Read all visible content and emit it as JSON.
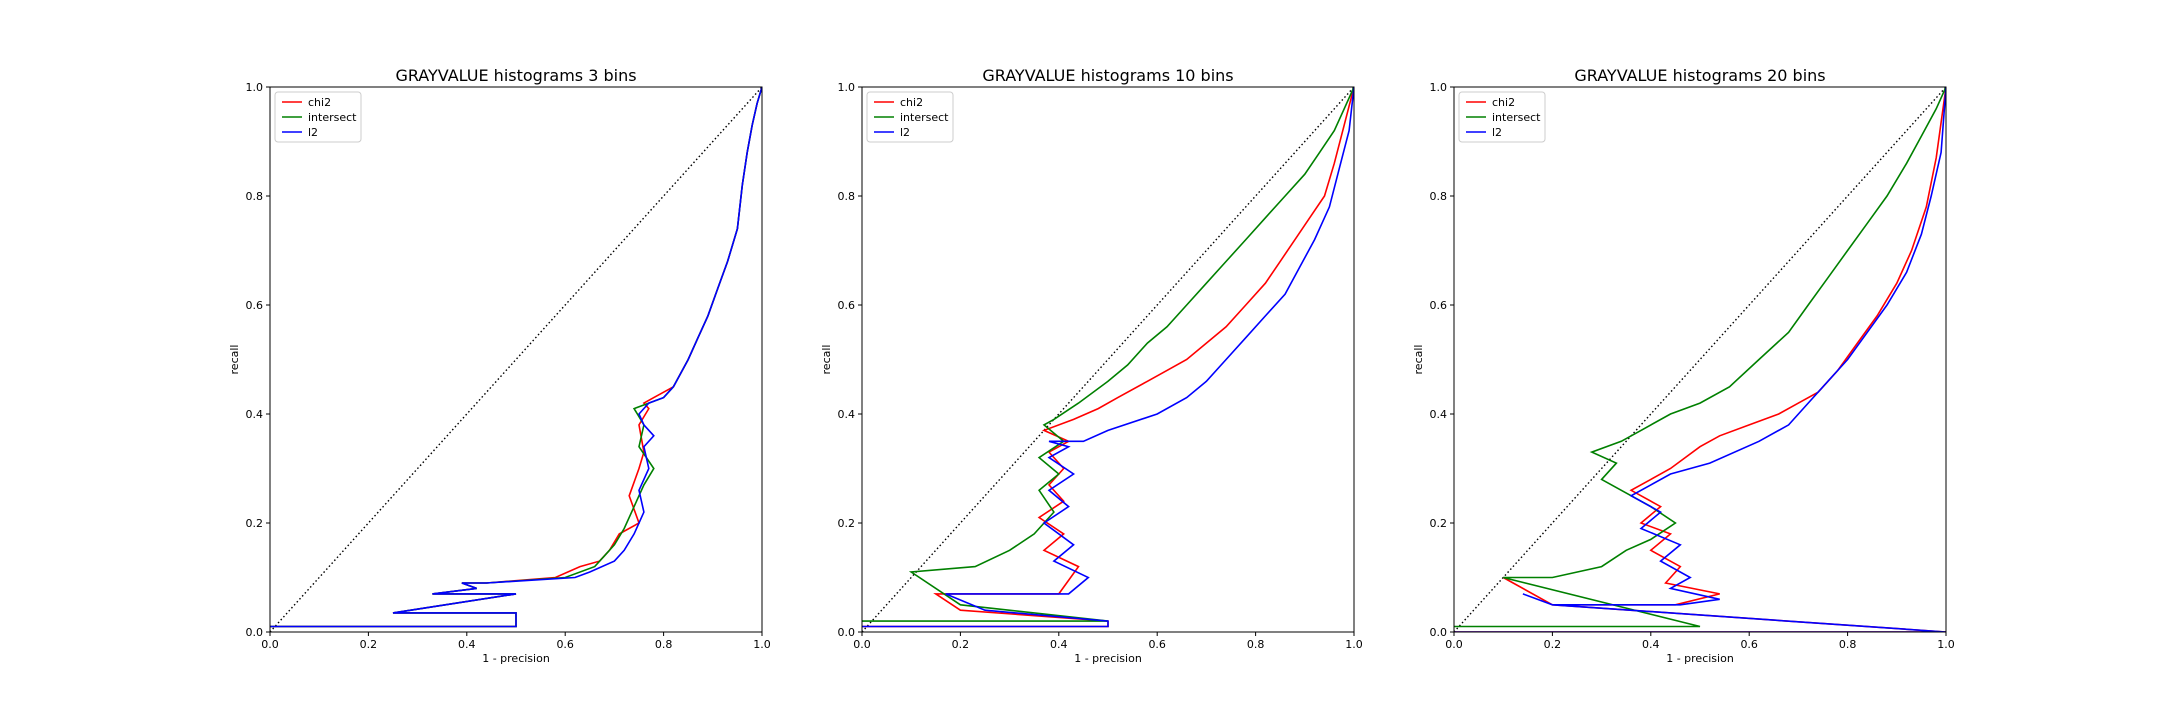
{
  "chart_data": [
    {
      "type": "line",
      "title": "GRAYVALUE histograms 3 bins",
      "xlabel": "1 - precision",
      "ylabel": "recall",
      "xlim": [
        0,
        1
      ],
      "ylim": [
        0,
        1
      ],
      "xticks": [
        "0.0",
        "0.2",
        "0.4",
        "0.6",
        "0.8",
        "1.0"
      ],
      "yticks": [
        "0.0",
        "0.2",
        "0.4",
        "0.6",
        "0.8",
        "1.0"
      ],
      "grid": false,
      "legend": "upper-left",
      "reference_line": {
        "style": "dotted",
        "color": "#000000",
        "x": [
          0,
          1
        ],
        "y": [
          0,
          1
        ]
      },
      "series": [
        {
          "name": "chi2",
          "color": "#ff0000",
          "x": [
            0.0,
            0.5,
            0.5,
            0.25,
            0.5,
            0.33,
            0.42,
            0.39,
            0.44,
            0.58,
            0.63,
            0.67,
            0.69,
            0.71,
            0.75,
            0.73,
            0.75,
            0.76,
            0.75,
            0.77,
            0.76,
            0.78,
            0.8,
            0.82,
            0.85,
            0.87,
            0.89,
            0.91,
            0.93,
            0.95,
            0.96,
            0.97,
            0.98,
            0.99,
            1.0
          ],
          "y": [
            0.01,
            0.01,
            0.035,
            0.035,
            0.07,
            0.07,
            0.08,
            0.09,
            0.09,
            0.1,
            0.12,
            0.13,
            0.15,
            0.18,
            0.2,
            0.25,
            0.3,
            0.33,
            0.38,
            0.41,
            0.42,
            0.43,
            0.44,
            0.45,
            0.5,
            0.54,
            0.58,
            0.63,
            0.68,
            0.74,
            0.82,
            0.88,
            0.93,
            0.97,
            1.0
          ]
        },
        {
          "name": "intersect",
          "color": "#008000",
          "x": [
            0.0,
            0.5,
            0.5,
            0.25,
            0.5,
            0.33,
            0.42,
            0.39,
            0.44,
            0.6,
            0.66,
            0.68,
            0.7,
            0.72,
            0.74,
            0.76,
            0.78,
            0.75,
            0.76,
            0.74,
            0.77,
            0.8,
            0.82,
            0.85,
            0.87,
            0.89,
            0.91,
            0.93,
            0.95,
            0.96,
            0.97,
            0.98,
            0.99,
            1.0
          ],
          "y": [
            0.01,
            0.01,
            0.035,
            0.035,
            0.07,
            0.07,
            0.08,
            0.09,
            0.09,
            0.1,
            0.12,
            0.14,
            0.16,
            0.19,
            0.23,
            0.27,
            0.3,
            0.34,
            0.38,
            0.41,
            0.42,
            0.43,
            0.45,
            0.5,
            0.54,
            0.58,
            0.63,
            0.68,
            0.74,
            0.82,
            0.88,
            0.93,
            0.97,
            1.0
          ]
        },
        {
          "name": "l2",
          "color": "#0000ff",
          "x": [
            0.0,
            0.5,
            0.5,
            0.25,
            0.5,
            0.33,
            0.42,
            0.39,
            0.44,
            0.62,
            0.65,
            0.7,
            0.72,
            0.74,
            0.76,
            0.75,
            0.77,
            0.76,
            0.78,
            0.76,
            0.75,
            0.77,
            0.8,
            0.82,
            0.85,
            0.87,
            0.89,
            0.91,
            0.93,
            0.95,
            0.96,
            0.97,
            0.98,
            0.99,
            1.0
          ],
          "y": [
            0.01,
            0.01,
            0.035,
            0.035,
            0.07,
            0.07,
            0.08,
            0.09,
            0.09,
            0.1,
            0.11,
            0.13,
            0.15,
            0.18,
            0.22,
            0.26,
            0.3,
            0.34,
            0.36,
            0.38,
            0.4,
            0.42,
            0.43,
            0.45,
            0.5,
            0.54,
            0.58,
            0.63,
            0.68,
            0.74,
            0.82,
            0.88,
            0.93,
            0.97,
            1.0
          ]
        }
      ]
    },
    {
      "type": "line",
      "title": "GRAYVALUE histograms 10 bins",
      "xlabel": "1 - precision",
      "ylabel": "recall",
      "xlim": [
        0,
        1
      ],
      "ylim": [
        0,
        1
      ],
      "xticks": [
        "0.0",
        "0.2",
        "0.4",
        "0.6",
        "0.8",
        "1.0"
      ],
      "yticks": [
        "0.0",
        "0.2",
        "0.4",
        "0.6",
        "0.8",
        "1.0"
      ],
      "grid": false,
      "legend": "upper-left",
      "reference_line": {
        "style": "dotted",
        "color": "#000000",
        "x": [
          0,
          1
        ],
        "y": [
          0,
          1
        ]
      },
      "series": [
        {
          "name": "chi2",
          "color": "#ff0000",
          "x": [
            0.0,
            0.5,
            0.5,
            0.2,
            0.15,
            0.4,
            0.44,
            0.37,
            0.41,
            0.36,
            0.41,
            0.38,
            0.41,
            0.38,
            0.42,
            0.37,
            0.43,
            0.48,
            0.52,
            0.58,
            0.62,
            0.66,
            0.7,
            0.74,
            0.78,
            0.82,
            0.85,
            0.88,
            0.91,
            0.94,
            0.96,
            0.98,
            1.0
          ],
          "y": [
            0.01,
            0.01,
            0.02,
            0.04,
            0.07,
            0.07,
            0.12,
            0.15,
            0.18,
            0.21,
            0.24,
            0.27,
            0.3,
            0.33,
            0.35,
            0.37,
            0.39,
            0.41,
            0.43,
            0.46,
            0.48,
            0.5,
            0.53,
            0.56,
            0.6,
            0.64,
            0.68,
            0.72,
            0.76,
            0.8,
            0.86,
            0.93,
            1.0
          ]
        },
        {
          "name": "intersect",
          "color": "#008000",
          "x": [
            0.0,
            0.5,
            0.5,
            0.2,
            0.1,
            0.23,
            0.3,
            0.35,
            0.39,
            0.36,
            0.4,
            0.36,
            0.41,
            0.37,
            0.39,
            0.44,
            0.5,
            0.54,
            0.58,
            0.62,
            0.66,
            0.7,
            0.74,
            0.78,
            0.82,
            0.86,
            0.9,
            0.93,
            0.96,
            0.98,
            1.0
          ],
          "y": [
            0.02,
            0.02,
            0.02,
            0.05,
            0.11,
            0.12,
            0.15,
            0.18,
            0.22,
            0.26,
            0.29,
            0.32,
            0.35,
            0.38,
            0.39,
            0.42,
            0.46,
            0.49,
            0.53,
            0.56,
            0.6,
            0.64,
            0.68,
            0.72,
            0.76,
            0.8,
            0.84,
            0.88,
            0.92,
            0.96,
            1.0
          ]
        },
        {
          "name": "l2",
          "color": "#0000ff",
          "x": [
            0.0,
            0.5,
            0.5,
            0.25,
            0.17,
            0.42,
            0.46,
            0.39,
            0.43,
            0.37,
            0.42,
            0.38,
            0.43,
            0.38,
            0.42,
            0.38,
            0.45,
            0.5,
            0.6,
            0.66,
            0.7,
            0.74,
            0.78,
            0.82,
            0.86,
            0.89,
            0.92,
            0.95,
            0.97,
            0.99,
            1.0
          ],
          "y": [
            0.01,
            0.01,
            0.02,
            0.04,
            0.07,
            0.07,
            0.1,
            0.13,
            0.16,
            0.2,
            0.23,
            0.26,
            0.29,
            0.32,
            0.34,
            0.35,
            0.35,
            0.37,
            0.4,
            0.43,
            0.46,
            0.5,
            0.54,
            0.58,
            0.62,
            0.67,
            0.72,
            0.78,
            0.85,
            0.92,
            1.0
          ]
        }
      ]
    },
    {
      "type": "line",
      "title": "GRAYVALUE histograms 20 bins",
      "xlabel": "1 - precision",
      "ylabel": "recall",
      "xlim": [
        0,
        1
      ],
      "ylim": [
        0,
        1
      ],
      "xticks": [
        "0.0",
        "0.2",
        "0.4",
        "0.6",
        "0.8",
        "1.0"
      ],
      "yticks": [
        "0.0",
        "0.2",
        "0.4",
        "0.6",
        "0.8",
        "1.0"
      ],
      "grid": false,
      "legend": "upper-left",
      "reference_line": {
        "style": "dotted",
        "color": "#000000",
        "x": [
          0,
          1
        ],
        "y": [
          0,
          1
        ]
      },
      "series": [
        {
          "name": "chi2",
          "color": "#ff0000",
          "x": [
            0.0,
            1.0,
            0.2,
            0.1,
            0.2,
            0.45,
            0.54,
            0.43,
            0.46,
            0.4,
            0.44,
            0.38,
            0.42,
            0.36,
            0.4,
            0.44,
            0.5,
            0.54,
            0.6,
            0.66,
            0.7,
            0.74,
            0.78,
            0.82,
            0.86,
            0.9,
            0.93,
            0.96,
            0.98,
            1.0
          ],
          "y": [
            0.0,
            0.0,
            0.05,
            0.1,
            0.05,
            0.05,
            0.07,
            0.09,
            0.12,
            0.15,
            0.18,
            0.2,
            0.23,
            0.26,
            0.28,
            0.3,
            0.34,
            0.36,
            0.38,
            0.4,
            0.42,
            0.44,
            0.48,
            0.53,
            0.58,
            0.64,
            0.7,
            0.78,
            0.87,
            1.0
          ]
        },
        {
          "name": "intersect",
          "color": "#008000",
          "x": [
            0.0,
            0.5,
            0.1,
            0.2,
            0.3,
            0.35,
            0.4,
            0.45,
            0.4,
            0.34,
            0.3,
            0.33,
            0.28,
            0.34,
            0.38,
            0.44,
            0.5,
            0.56,
            0.62,
            0.68,
            0.72,
            0.76,
            0.8,
            0.84,
            0.88,
            0.92,
            0.95,
            0.98,
            1.0
          ],
          "y": [
            0.01,
            0.01,
            0.1,
            0.1,
            0.12,
            0.15,
            0.17,
            0.2,
            0.23,
            0.26,
            0.28,
            0.31,
            0.33,
            0.35,
            0.37,
            0.4,
            0.42,
            0.45,
            0.5,
            0.55,
            0.6,
            0.65,
            0.7,
            0.75,
            0.8,
            0.86,
            0.91,
            0.96,
            1.0
          ]
        },
        {
          "name": "l2",
          "color": "#0000ff",
          "x": [
            0.0,
            1.0,
            0.2,
            0.14,
            0.2,
            0.46,
            0.54,
            0.44,
            0.48,
            0.42,
            0.46,
            0.38,
            0.42,
            0.36,
            0.4,
            0.44,
            0.52,
            0.62,
            0.68,
            0.72,
            0.76,
            0.8,
            0.84,
            0.88,
            0.92,
            0.95,
            0.97,
            0.99,
            1.0
          ],
          "y": [
            0.0,
            0.0,
            0.05,
            0.07,
            0.05,
            0.05,
            0.06,
            0.08,
            0.1,
            0.13,
            0.16,
            0.19,
            0.22,
            0.25,
            0.27,
            0.29,
            0.31,
            0.35,
            0.38,
            0.42,
            0.46,
            0.5,
            0.55,
            0.6,
            0.66,
            0.73,
            0.8,
            0.88,
            1.0
          ]
        }
      ]
    }
  ]
}
